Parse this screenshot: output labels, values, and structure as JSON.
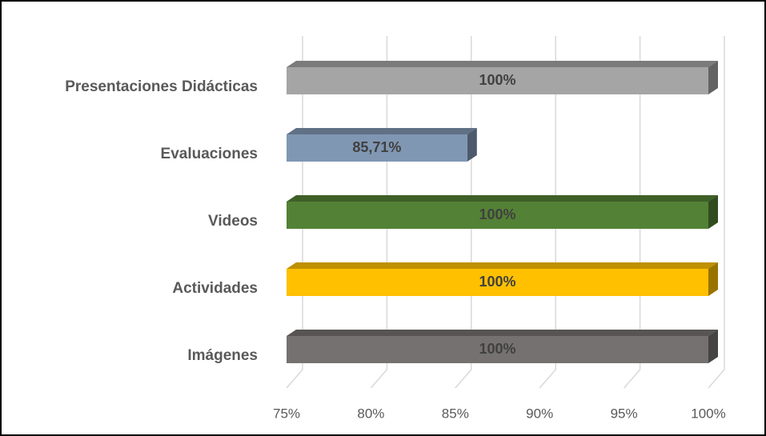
{
  "chart_data": {
    "type": "bar",
    "orientation": "horizontal",
    "categories": [
      "Presentaciones Didácticas",
      "Evaluaciones",
      "Videos",
      "Actividades",
      "Imágenes"
    ],
    "values": [
      100,
      85.71,
      100,
      100,
      100
    ],
    "value_labels": [
      "100%",
      "85,71%",
      "100%",
      "100%",
      "100%"
    ],
    "colors": [
      "#a5a5a5",
      "#8097b3",
      "#538135",
      "#ffc000",
      "#767171"
    ],
    "xlim": [
      75,
      100
    ],
    "xticks": [
      {
        "value": 75,
        "label": "75%"
      },
      {
        "value": 80,
        "label": "80%"
      },
      {
        "value": 85,
        "label": "85%"
      },
      {
        "value": 90,
        "label": "90%"
      },
      {
        "value": 95,
        "label": "95%"
      },
      {
        "value": 100,
        "label": "100%"
      }
    ],
    "grid": true
  }
}
